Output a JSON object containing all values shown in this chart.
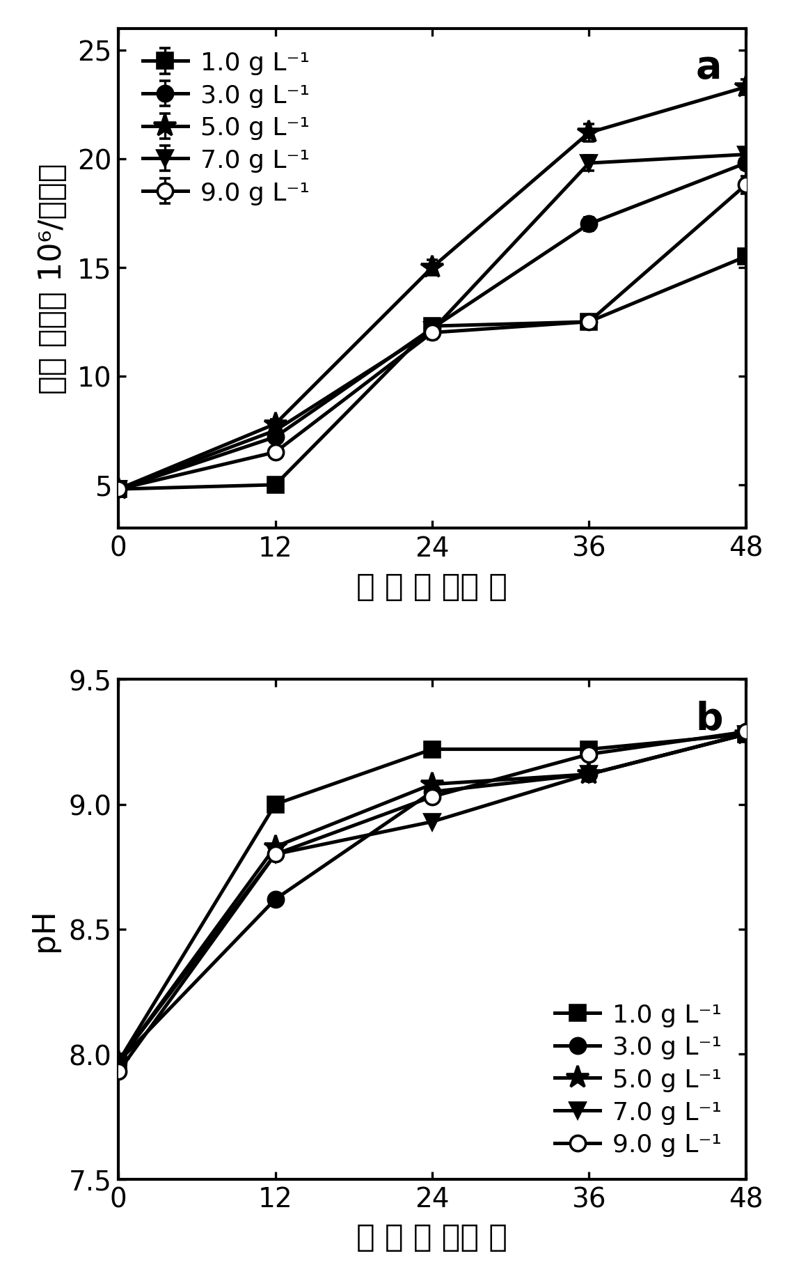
{
  "panel_a": {
    "title": "a",
    "xlabel": "时 间 （ 小时 ）",
    "ylabel": "细胞 密度（ 10⁶/毫升）",
    "xlim": [
      0,
      48
    ],
    "ylim": [
      3,
      26
    ],
    "yticks": [
      5,
      10,
      15,
      20,
      25
    ],
    "xticks": [
      0,
      12,
      24,
      36,
      48
    ],
    "series": [
      {
        "label": "1.0 g L⁻¹",
        "marker": "s",
        "filled": true,
        "x": [
          0,
          12,
          24,
          36,
          48
        ],
        "y": [
          4.8,
          5.0,
          12.3,
          12.5,
          15.5
        ],
        "yerr": [
          0.15,
          0.15,
          0.3,
          0.3,
          0.3
        ]
      },
      {
        "label": "3.0 g L⁻¹",
        "marker": "o",
        "filled": true,
        "x": [
          0,
          12,
          24,
          36,
          48
        ],
        "y": [
          4.8,
          7.2,
          12.2,
          17.0,
          19.8
        ],
        "yerr": [
          0.15,
          0.2,
          0.3,
          0.3,
          0.3
        ]
      },
      {
        "label": "5.0 g L⁻¹",
        "marker": "*",
        "filled": true,
        "x": [
          0,
          12,
          24,
          36,
          48
        ],
        "y": [
          4.8,
          7.8,
          15.0,
          21.2,
          23.3
        ],
        "yerr": [
          0.15,
          0.2,
          0.35,
          0.4,
          0.35
        ]
      },
      {
        "label": "7.0 g L⁻¹",
        "marker": "v",
        "filled": true,
        "x": [
          0,
          12,
          24,
          36,
          48
        ],
        "y": [
          4.8,
          7.5,
          12.1,
          19.8,
          20.2
        ],
        "yerr": [
          0.15,
          0.2,
          0.3,
          0.35,
          0.3
        ]
      },
      {
        "label": "9.0 g L⁻¹",
        "marker": "o",
        "filled": false,
        "x": [
          0,
          12,
          24,
          36,
          48
        ],
        "y": [
          4.8,
          6.5,
          12.0,
          12.5,
          18.8
        ],
        "yerr": [
          0.15,
          0.2,
          0.3,
          0.3,
          0.4
        ]
      }
    ]
  },
  "panel_b": {
    "title": "b",
    "xlabel": "时 间 （ 小时 ）",
    "ylabel": "pH",
    "xlim": [
      0,
      48
    ],
    "ylim": [
      7.5,
      9.5
    ],
    "yticks": [
      7.5,
      8.0,
      8.5,
      9.0,
      9.5
    ],
    "xticks": [
      0,
      12,
      24,
      36,
      48
    ],
    "series": [
      {
        "label": "1.0 g L⁻¹",
        "marker": "s",
        "filled": true,
        "x": [
          0,
          12,
          24,
          36,
          48
        ],
        "y": [
          7.97,
          9.0,
          9.22,
          9.22,
          9.28
        ]
      },
      {
        "label": "3.0 g L⁻¹",
        "marker": "o",
        "filled": true,
        "x": [
          0,
          12,
          24,
          36,
          48
        ],
        "y": [
          7.97,
          8.62,
          9.05,
          9.12,
          9.28
        ]
      },
      {
        "label": "5.0 g L⁻¹",
        "marker": "*",
        "filled": true,
        "x": [
          0,
          12,
          24,
          36,
          48
        ],
        "y": [
          7.97,
          8.83,
          9.08,
          9.12,
          9.28
        ]
      },
      {
        "label": "7.0 g L⁻¹",
        "marker": "v",
        "filled": true,
        "x": [
          0,
          12,
          24,
          36,
          48
        ],
        "y": [
          7.97,
          8.8,
          8.93,
          9.12,
          9.28
        ]
      },
      {
        "label": "9.0 g L⁻¹",
        "marker": "o",
        "filled": false,
        "x": [
          0,
          12,
          24,
          36,
          48
        ],
        "y": [
          7.93,
          8.8,
          9.03,
          9.2,
          9.29
        ]
      }
    ]
  },
  "line_color": "#000000",
  "markersize": 8,
  "star_markersize": 12,
  "linewidth": 1.8,
  "legend_fontsize": 13,
  "tick_fontsize": 14,
  "label_fontsize": 16,
  "title_fontsize": 20
}
